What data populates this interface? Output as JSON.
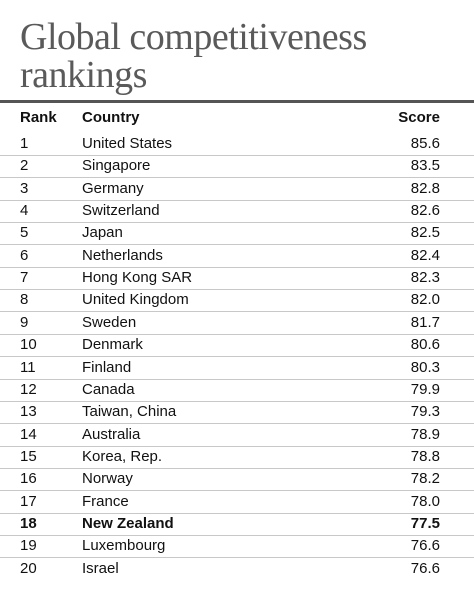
{
  "title": "Global competitiveness rankings",
  "table": {
    "header": [
      "Rank",
      "Country",
      "Score"
    ],
    "highlight_row": 17,
    "rows": [
      [
        "1",
        "United States",
        "85.6"
      ],
      [
        "2",
        "Singapore",
        "83.5"
      ],
      [
        "3",
        "Germany",
        "82.8"
      ],
      [
        "4",
        "Switzerland",
        "82.6"
      ],
      [
        "5",
        "Japan",
        "82.5"
      ],
      [
        "6",
        "Netherlands",
        "82.4"
      ],
      [
        "7",
        "Hong Kong SAR",
        "82.3"
      ],
      [
        "8",
        "United Kingdom",
        "82.0"
      ],
      [
        "9",
        "Sweden",
        "81.7"
      ],
      [
        "10",
        "Denmark",
        "80.6"
      ],
      [
        "11",
        "Finland",
        "80.3"
      ],
      [
        "12",
        "Canada",
        "79.9"
      ],
      [
        "13",
        "Taiwan, China",
        "79.3"
      ],
      [
        "14",
        "Australia",
        "78.9"
      ],
      [
        "15",
        "Korea, Rep.",
        "78.8"
      ],
      [
        "16",
        "Norway",
        "78.2"
      ],
      [
        "17",
        "France",
        "78.0"
      ],
      [
        "18",
        "New Zealand",
        "77.5"
      ],
      [
        "19",
        "Luxembourg",
        "76.6"
      ],
      [
        "20",
        "Israel",
        "76.6"
      ]
    ]
  }
}
